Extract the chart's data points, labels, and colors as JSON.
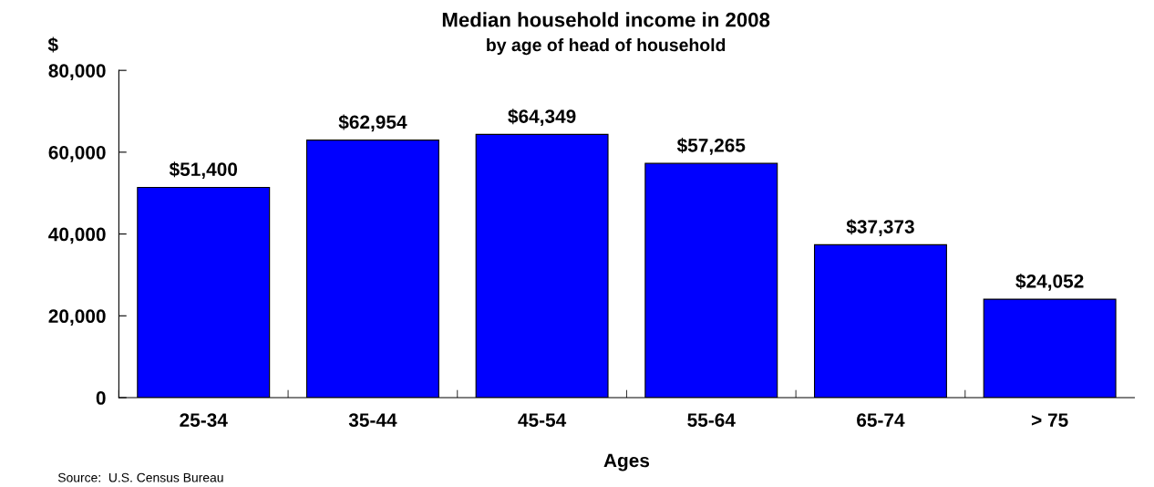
{
  "chart_data": {
    "type": "bar",
    "title": "Median household income in 2008",
    "subtitle": "by age of head of household",
    "xlabel": "Ages",
    "ylabel": "$",
    "categories": [
      "25-34",
      "35-44",
      "45-54",
      "55-64",
      "65-74",
      "> 75"
    ],
    "values": [
      51400,
      62954,
      64349,
      57265,
      37373,
      24052
    ],
    "value_labels": [
      "$51,400",
      "$62,954",
      "$64,349",
      "$57,265",
      "$37,373",
      "$24,052"
    ],
    "color": "#0000ff",
    "ylim": [
      0,
      80000
    ],
    "yticks": [
      {
        "value": 0,
        "label": "0"
      },
      {
        "value": 20000,
        "label": "20,000"
      },
      {
        "value": 40000,
        "label": "40,000"
      },
      {
        "value": 60000,
        "label": "60,000"
      },
      {
        "value": 80000,
        "label": "80,000"
      }
    ],
    "annotations": [
      "Source:  U.S. Census Bureau"
    ]
  }
}
